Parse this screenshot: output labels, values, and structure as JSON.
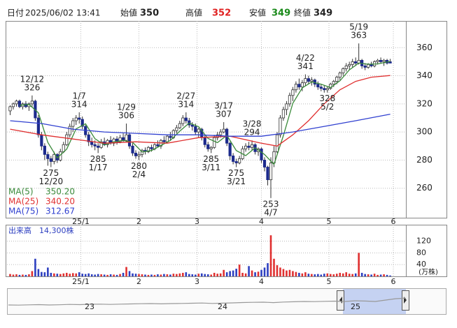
{
  "header": {
    "date_label": "日付",
    "datetime": "2025/06/02 13:41",
    "open_label": "始値",
    "open": 350,
    "high_label": "高値",
    "high": 352,
    "low_label": "安値",
    "low": 349,
    "close_label": "終値",
    "close": 349
  },
  "chart_data": {
    "type": "candlestick",
    "ylim": [
      239,
      379
    ],
    "yticks": [
      260,
      280,
      300,
      320,
      340,
      360
    ],
    "xlim": [
      -1,
      126
    ],
    "xticks": [
      {
        "value": 22.5,
        "label": "25/1"
      },
      {
        "value": 41,
        "label": "2"
      },
      {
        "value": 59.5,
        "label": "3"
      },
      {
        "value": 80,
        "label": "4"
      },
      {
        "value": 101.5,
        "label": "5"
      },
      {
        "value": 122,
        "label": "6"
      }
    ],
    "grid": true,
    "up_color": "#ffffff",
    "down_color": "#1c2a8c",
    "ohlc": [
      [
        315,
        319,
        312,
        318
      ],
      [
        318,
        321,
        316,
        320
      ],
      [
        320,
        323,
        318,
        322
      ],
      [
        322,
        323,
        317,
        318
      ],
      [
        318,
        321,
        316,
        320
      ],
      [
        320,
        322,
        317,
        318
      ],
      [
        318,
        321,
        315,
        320
      ],
      [
        320,
        326,
        318,
        322
      ],
      [
        322,
        323,
        308,
        310
      ],
      [
        310,
        312,
        296,
        298
      ],
      [
        298,
        300,
        287,
        290
      ],
      [
        290,
        292,
        280,
        284
      ],
      [
        284,
        286,
        276,
        281
      ],
      [
        281,
        283,
        275,
        279
      ],
      [
        279,
        286,
        277,
        284
      ],
      [
        284,
        285,
        278,
        280
      ],
      [
        280,
        288,
        279,
        286
      ],
      [
        286,
        293,
        285,
        291
      ],
      [
        291,
        300,
        290,
        298
      ],
      [
        298,
        306,
        296,
        304
      ],
      [
        304,
        310,
        300,
        308
      ],
      [
        308,
        312,
        305,
        310
      ],
      [
        310,
        314,
        306,
        309
      ],
      [
        309,
        311,
        302,
        304
      ],
      [
        304,
        305,
        296,
        298
      ],
      [
        298,
        300,
        290,
        293
      ],
      [
        293,
        296,
        289,
        291
      ],
      [
        291,
        294,
        287,
        290
      ],
      [
        290,
        292,
        285,
        289
      ],
      [
        289,
        295,
        288,
        293
      ],
      [
        293,
        296,
        290,
        291
      ],
      [
        291,
        295,
        289,
        294
      ],
      [
        294,
        297,
        291,
        292
      ],
      [
        292,
        296,
        290,
        295
      ],
      [
        295,
        297,
        291,
        293
      ],
      [
        293,
        298,
        292,
        296
      ],
      [
        296,
        299,
        293,
        294
      ],
      [
        294,
        306,
        293,
        298
      ],
      [
        298,
        299,
        288,
        290
      ],
      [
        290,
        292,
        283,
        285
      ],
      [
        285,
        287,
        281,
        283
      ],
      [
        283,
        286,
        280,
        284
      ],
      [
        284,
        288,
        282,
        287
      ],
      [
        287,
        289,
        284,
        286
      ],
      [
        286,
        290,
        285,
        289
      ],
      [
        289,
        291,
        286,
        288
      ],
      [
        288,
        292,
        287,
        291
      ],
      [
        291,
        294,
        289,
        290
      ],
      [
        290,
        295,
        288,
        294
      ],
      [
        294,
        297,
        292,
        293
      ],
      [
        293,
        298,
        292,
        297
      ],
      [
        297,
        300,
        294,
        296
      ],
      [
        296,
        302,
        295,
        301
      ],
      [
        301,
        305,
        299,
        303
      ],
      [
        303,
        308,
        302,
        306
      ],
      [
        306,
        312,
        304,
        310
      ],
      [
        310,
        314,
        306,
        308
      ],
      [
        308,
        310,
        303,
        305
      ],
      [
        305,
        307,
        301,
        304
      ],
      [
        304,
        306,
        298,
        300
      ],
      [
        300,
        303,
        296,
        302
      ],
      [
        302,
        303,
        294,
        296
      ],
      [
        296,
        298,
        289,
        291
      ],
      [
        291,
        293,
        286,
        288
      ],
      [
        288,
        290,
        285,
        289
      ],
      [
        289,
        298,
        288,
        296
      ],
      [
        296,
        300,
        294,
        298
      ],
      [
        298,
        302,
        296,
        300
      ],
      [
        300,
        307,
        299,
        302
      ],
      [
        302,
        303,
        290,
        292
      ],
      [
        292,
        293,
        280,
        283
      ],
      [
        283,
        285,
        277,
        279
      ],
      [
        279,
        281,
        275,
        278
      ],
      [
        278,
        283,
        277,
        281
      ],
      [
        281,
        290,
        280,
        288
      ],
      [
        288,
        292,
        286,
        290
      ],
      [
        290,
        293,
        287,
        289
      ],
      [
        289,
        294,
        287,
        291
      ],
      [
        291,
        292,
        284,
        286
      ],
      [
        286,
        289,
        283,
        288
      ],
      [
        288,
        289,
        278,
        280
      ],
      [
        280,
        282,
        272,
        275
      ],
      [
        275,
        276,
        262,
        266
      ],
      [
        266,
        282,
        253,
        278
      ],
      [
        278,
        290,
        275,
        286
      ],
      [
        286,
        300,
        285,
        298
      ],
      [
        298,
        312,
        296,
        310
      ],
      [
        310,
        318,
        308,
        316
      ],
      [
        316,
        322,
        312,
        320
      ],
      [
        320,
        328,
        318,
        326
      ],
      [
        326,
        332,
        322,
        330
      ],
      [
        330,
        336,
        328,
        334
      ],
      [
        334,
        338,
        330,
        332
      ],
      [
        332,
        337,
        329,
        335
      ],
      [
        335,
        341,
        333,
        338
      ],
      [
        338,
        340,
        334,
        336
      ],
      [
        336,
        339,
        333,
        337
      ],
      [
        337,
        338,
        332,
        334
      ],
      [
        334,
        336,
        330,
        332
      ],
      [
        332,
        334,
        329,
        331
      ],
      [
        331,
        333,
        328,
        330
      ],
      [
        330,
        332,
        328,
        331
      ],
      [
        331,
        335,
        330,
        334
      ],
      [
        334,
        337,
        332,
        336
      ],
      [
        336,
        340,
        334,
        339
      ],
      [
        339,
        343,
        337,
        342
      ],
      [
        342,
        346,
        340,
        345
      ],
      [
        345,
        349,
        343,
        347
      ],
      [
        347,
        350,
        344,
        348
      ],
      [
        348,
        352,
        346,
        350
      ],
      [
        350,
        353,
        347,
        349
      ],
      [
        349,
        363,
        348,
        351
      ],
      [
        351,
        352,
        345,
        347
      ],
      [
        347,
        349,
        344,
        346
      ],
      [
        346,
        349,
        345,
        348
      ],
      [
        348,
        350,
        346,
        347
      ],
      [
        347,
        351,
        346,
        350
      ],
      [
        350,
        352,
        348,
        351
      ],
      [
        351,
        353,
        349,
        350
      ],
      [
        350,
        352,
        347,
        351
      ],
      [
        351,
        352,
        348,
        349
      ],
      [
        350,
        352,
        349,
        349
      ]
    ],
    "series": [
      {
        "name": "MA(5)",
        "last_label": "350.20",
        "color": "#3a8a3a",
        "x": [
          3,
          6,
          9,
          12,
          15,
          18,
          21,
          24,
          27,
          30,
          33,
          36,
          39,
          42,
          45,
          48,
          51,
          54,
          57,
          60,
          63,
          66,
          69,
          72,
          75,
          78,
          81,
          84,
          87,
          90,
          93,
          96,
          99,
          102,
          105,
          108,
          111,
          114,
          117,
          121
        ],
        "values": [
          319,
          319.6,
          313.6,
          292.6,
          281.6,
          287.8,
          302.2,
          305.8,
          295.2,
          290.8,
          293,
          294,
          292.6,
          285.8,
          286.8,
          290.4,
          294,
          300.6,
          306.4,
          303.8,
          295.4,
          292.4,
          297.6,
          286.8,
          283.2,
          288.8,
          284,
          277,
          297.6,
          320.4,
          331.4,
          335.6,
          334,
          331.6,
          336.4,
          344.2,
          349,
          348.2,
          348.4,
          350.2
        ]
      },
      {
        "name": "MA(25)",
        "last_label": "340.20",
        "color": "#e03030",
        "x": [
          0,
          10,
          20,
          30,
          40,
          50,
          60,
          70,
          80,
          85,
          90,
          95,
          100,
          105,
          110,
          115,
          121
        ],
        "values": [
          302,
          298,
          295,
          292,
          293,
          292,
          296,
          297,
          292,
          290,
          298,
          308,
          320,
          330,
          336,
          339,
          340.2
        ]
      },
      {
        "name": "MA(75)",
        "last_label": "312.67",
        "color": "#3040d0",
        "x": [
          0,
          10,
          20,
          30,
          40,
          50,
          60,
          70,
          80,
          90,
          100,
          110,
          121
        ],
        "values": [
          308,
          306,
          302,
          300,
          299,
          298,
          298,
          297,
          297,
          300,
          304,
          308,
          312.67
        ]
      }
    ],
    "annotations": [
      {
        "index": 7,
        "date": "12/12",
        "price": 326,
        "side": "above"
      },
      {
        "index": 13,
        "date": "12/20",
        "price": 275,
        "side": "below"
      },
      {
        "index": 22,
        "date": "1/7",
        "price": 314,
        "side": "above"
      },
      {
        "index": 28,
        "date": "1/17",
        "price": 285,
        "side": "below"
      },
      {
        "index": 37,
        "date": "1/29",
        "price": 306,
        "side": "above"
      },
      {
        "index": 41,
        "date": "2/4",
        "price": 280,
        "side": "below"
      },
      {
        "index": 56,
        "date": "2/27",
        "price": 314,
        "side": "above"
      },
      {
        "index": 64,
        "date": "3/11",
        "price": 285,
        "side": "below"
      },
      {
        "index": 68,
        "date": "3/17",
        "price": 307,
        "side": "above"
      },
      {
        "index": 72,
        "date": "3/21",
        "price": 275,
        "side": "below"
      },
      {
        "index": 77,
        "date": "3/28",
        "price": 294,
        "side": "above"
      },
      {
        "index": 83,
        "date": "4/7",
        "price": 253,
        "side": "below"
      },
      {
        "index": 94,
        "date": "4/22",
        "price": 341,
        "side": "above"
      },
      {
        "index": 101,
        "date": "5/2",
        "price": 328,
        "side": "below"
      },
      {
        "index": 111,
        "date": "5/19",
        "price": 363,
        "side": "above"
      }
    ],
    "volume_title": "出来高　14,300株",
    "volume_unit": "(万株)",
    "volume_ylim": [
      0,
      176
    ],
    "volume_yticks": [
      40,
      80,
      120
    ],
    "volume_up_color": "#e03030",
    "volume_down_color": "#2d3fc0",
    "volume": [
      8,
      6,
      7,
      5,
      6,
      5,
      7,
      18,
      60,
      25,
      15,
      14,
      30,
      12,
      10,
      9,
      8,
      10,
      12,
      9,
      11,
      10,
      14,
      9,
      8,
      10,
      7,
      6,
      8,
      7,
      6,
      5,
      7,
      6,
      5,
      8,
      12,
      32,
      18,
      10,
      9,
      8,
      7,
      6,
      5,
      6,
      5,
      7,
      6,
      8,
      7,
      6,
      9,
      8,
      10,
      12,
      14,
      8,
      7,
      6,
      9,
      10,
      8,
      7,
      6,
      12,
      9,
      10,
      22,
      14,
      18,
      20,
      26,
      40,
      12,
      10,
      35,
      20,
      14,
      16,
      22,
      30,
      45,
      140,
      60,
      38,
      30,
      25,
      20,
      22,
      18,
      15,
      12,
      10,
      14,
      9,
      8,
      7,
      8,
      6,
      9,
      10,
      8,
      7,
      9,
      12,
      10,
      14,
      9,
      8,
      10,
      80,
      12,
      8,
      7,
      6,
      9,
      5,
      6,
      7,
      5,
      3
    ],
    "navigator": {
      "labels": [
        "23",
        "24",
        "25"
      ],
      "ylim": [
        120,
        490
      ],
      "color": "#999999",
      "values": [
        250,
        248,
        252,
        255,
        250,
        253,
        258,
        255,
        260,
        262,
        258,
        262,
        265,
        268,
        270,
        266,
        270,
        272,
        275,
        278,
        272,
        276,
        280,
        285,
        288,
        290,
        284,
        292,
        296,
        300,
        298,
        302,
        305,
        300,
        310,
        306,
        300,
        320,
        340,
        348
      ]
    }
  }
}
